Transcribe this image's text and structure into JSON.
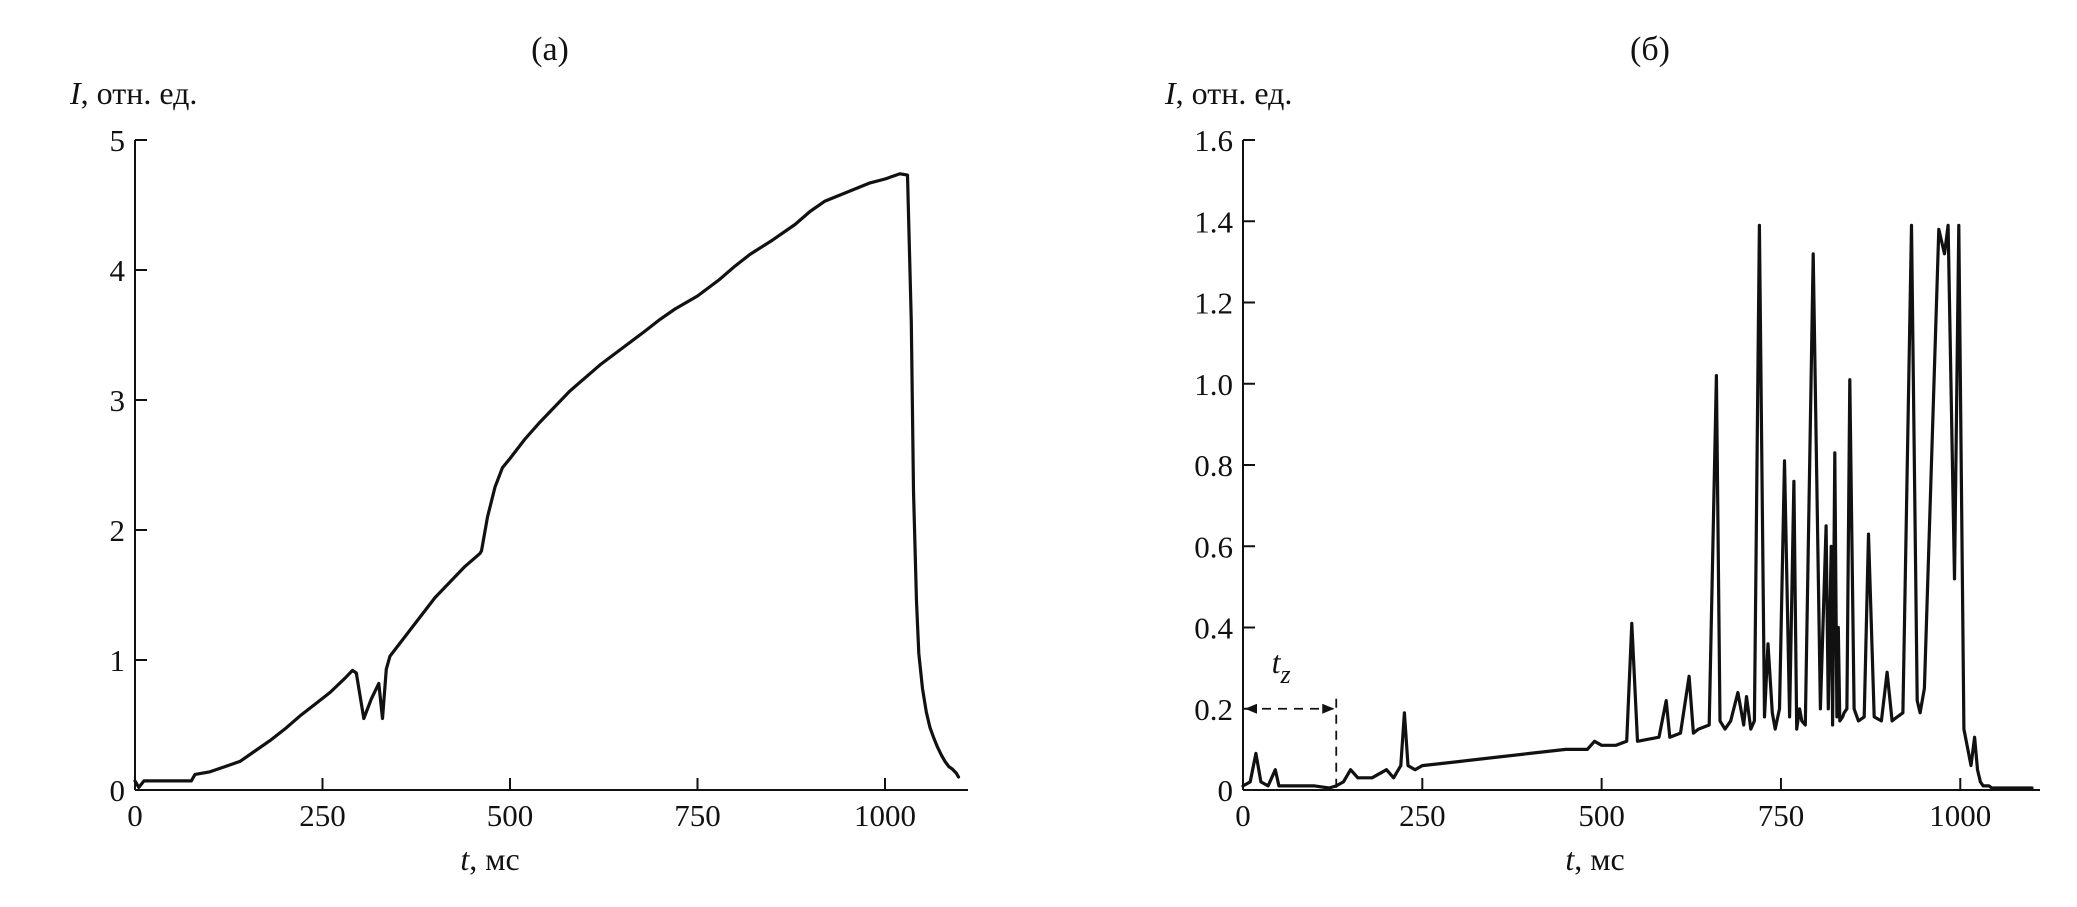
{
  "chart_data": [
    {
      "panel": "(a)",
      "type": "line",
      "title": "(а)",
      "xlabel_var": "t",
      "xlabel_unit": ", мс",
      "ylabel_var": "I",
      "ylabel_unit": ", отн. ед.",
      "xlim": [
        0,
        1100
      ],
      "ylim": [
        0,
        5
      ],
      "xticks": [
        0,
        250,
        500,
        750,
        1000
      ],
      "xtick_labels": [
        "0",
        "250",
        "500",
        "750",
        "1000"
      ],
      "yticks": [
        0,
        1,
        2,
        3,
        4,
        5
      ],
      "ytick_labels": [
        "0",
        "1",
        "2",
        "3",
        "4",
        "5"
      ],
      "grid": false,
      "x": [
        0,
        5,
        12,
        40,
        75,
        80,
        100,
        120,
        140,
        160,
        180,
        200,
        220,
        240,
        260,
        280,
        290,
        295,
        305,
        315,
        325,
        330,
        335,
        340,
        360,
        380,
        400,
        420,
        440,
        460,
        462,
        470,
        480,
        490,
        500,
        520,
        540,
        560,
        580,
        600,
        620,
        650,
        680,
        700,
        720,
        750,
        780,
        800,
        820,
        850,
        880,
        900,
        920,
        950,
        980,
        1000,
        1010,
        1020,
        1030,
        1035,
        1038,
        1042,
        1045,
        1050,
        1055,
        1060,
        1065,
        1070,
        1075,
        1080,
        1085,
        1090,
        1095,
        1098
      ],
      "y": [
        0.07,
        0.02,
        0.07,
        0.07,
        0.07,
        0.12,
        0.14,
        0.18,
        0.22,
        0.3,
        0.38,
        0.47,
        0.57,
        0.66,
        0.75,
        0.86,
        0.92,
        0.9,
        0.55,
        0.7,
        0.82,
        0.55,
        0.93,
        1.03,
        1.18,
        1.33,
        1.48,
        1.6,
        1.72,
        1.82,
        1.84,
        2.1,
        2.33,
        2.48,
        2.55,
        2.7,
        2.83,
        2.95,
        3.07,
        3.17,
        3.27,
        3.4,
        3.53,
        3.62,
        3.7,
        3.8,
        3.93,
        4.03,
        4.12,
        4.23,
        4.35,
        4.45,
        4.53,
        4.6,
        4.67,
        4.7,
        4.72,
        4.74,
        4.73,
        3.6,
        2.3,
        1.45,
        1.05,
        0.78,
        0.6,
        0.48,
        0.4,
        0.33,
        0.27,
        0.22,
        0.18,
        0.16,
        0.13,
        0.1
      ]
    },
    {
      "panel": "(b)",
      "type": "line",
      "title": "(б)",
      "xlabel_var": "t",
      "xlabel_unit": ", мс",
      "ylabel_var": "I",
      "ylabel_unit": ", отн. ед.",
      "xlim": [
        0,
        1100
      ],
      "ylim": [
        0,
        1.6
      ],
      "xticks": [
        0,
        250,
        500,
        750,
        1000
      ],
      "xtick_labels": [
        "0",
        "250",
        "500",
        "750",
        "1000"
      ],
      "yticks": [
        0,
        0.2,
        0.4,
        0.6,
        0.8,
        1.0,
        1.2,
        1.4,
        1.6
      ],
      "ytick_labels": [
        "0",
        "0.2",
        "0.4",
        "0.6",
        "0.8",
        "1.0",
        "1.2",
        "1.4",
        "1.6"
      ],
      "grid": false,
      "annotation": {
        "label_base": "t",
        "label_sub": "z",
        "x_start": 0,
        "x_end": 130,
        "y": 0.2
      },
      "x": [
        0,
        10,
        18,
        25,
        35,
        45,
        50,
        60,
        80,
        100,
        120,
        130,
        140,
        150,
        160,
        180,
        200,
        210,
        220,
        225,
        230,
        240,
        250,
        300,
        350,
        400,
        450,
        480,
        490,
        500,
        520,
        535,
        542,
        550,
        580,
        590,
        595,
        610,
        622,
        628,
        635,
        650,
        660,
        665,
        672,
        680,
        690,
        698,
        702,
        708,
        713,
        720,
        727,
        732,
        738,
        742,
        748,
        755,
        762,
        768,
        772,
        776,
        779,
        784,
        795,
        805,
        813,
        816,
        820,
        822,
        825,
        828,
        830,
        832,
        836,
        838,
        842,
        846,
        852,
        858,
        866,
        872,
        880,
        890,
        898,
        905,
        912,
        920,
        932,
        940,
        944,
        950,
        970,
        978,
        983,
        992,
        998,
        1005,
        1015,
        1020,
        1024,
        1028,
        1032,
        1040,
        1044,
        1050,
        1060,
        1080,
        1100
      ],
      "y": [
        0.01,
        0.02,
        0.09,
        0.02,
        0.01,
        0.05,
        0.01,
        0.01,
        0.01,
        0.01,
        0.005,
        0.01,
        0.02,
        0.05,
        0.03,
        0.03,
        0.05,
        0.03,
        0.06,
        0.19,
        0.06,
        0.05,
        0.06,
        0.07,
        0.08,
        0.09,
        0.1,
        0.1,
        0.12,
        0.11,
        0.11,
        0.12,
        0.41,
        0.12,
        0.13,
        0.22,
        0.13,
        0.14,
        0.28,
        0.14,
        0.15,
        0.16,
        1.02,
        0.17,
        0.15,
        0.17,
        0.24,
        0.16,
        0.23,
        0.15,
        0.17,
        1.39,
        0.18,
        0.36,
        0.19,
        0.15,
        0.2,
        0.81,
        0.18,
        0.76,
        0.15,
        0.2,
        0.17,
        0.16,
        1.32,
        0.2,
        0.65,
        0.2,
        0.6,
        0.16,
        0.83,
        0.18,
        0.4,
        0.17,
        0.18,
        0.19,
        0.2,
        1.01,
        0.2,
        0.17,
        0.18,
        0.63,
        0.18,
        0.17,
        0.29,
        0.17,
        0.18,
        0.19,
        1.39,
        0.22,
        0.19,
        0.25,
        1.38,
        1.32,
        1.39,
        0.52,
        1.39,
        0.15,
        0.06,
        0.13,
        0.05,
        0.02,
        0.01,
        0.01,
        0.005,
        0.005,
        0.005,
        0.005,
        0.005
      ]
    }
  ]
}
